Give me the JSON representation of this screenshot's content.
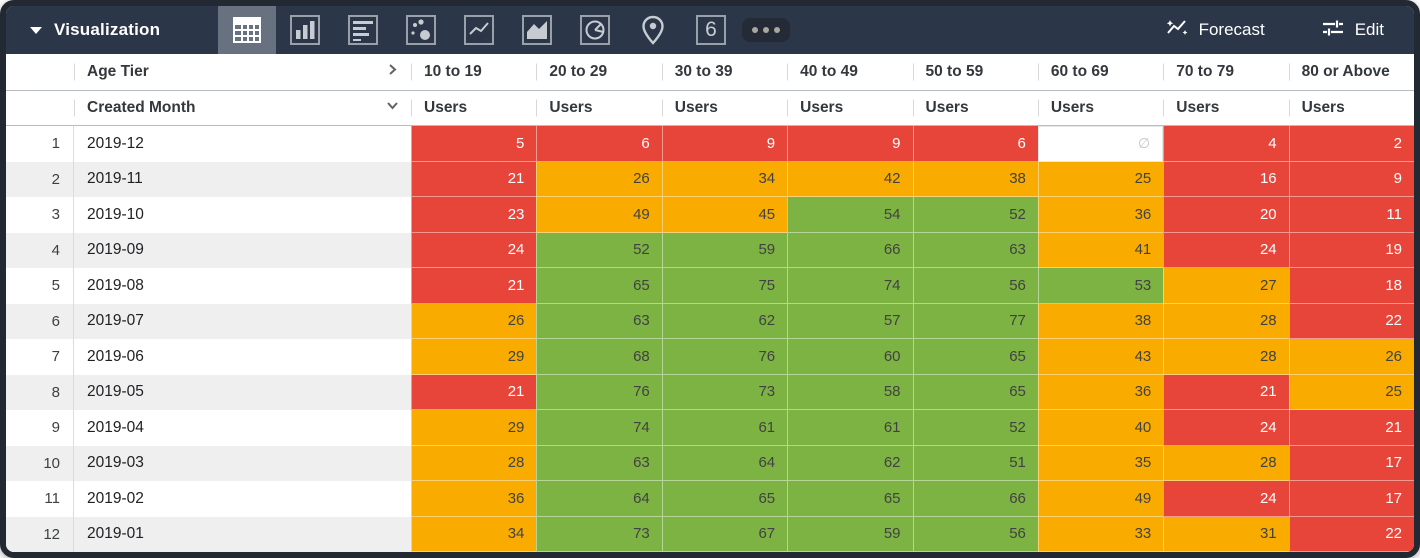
{
  "topbar": {
    "title": "Visualization",
    "selected_vis": "table",
    "vis_types": [
      "table",
      "bar",
      "row-bars",
      "scatter",
      "line",
      "area",
      "pie",
      "map",
      "single-value",
      "more"
    ],
    "single_value_glyph": "6",
    "forecast_label": "Forecast",
    "edit_label": "Edit"
  },
  "table": {
    "dimension_header": "Age Tier",
    "row_header": "Created Month",
    "columns": [
      {
        "tier": "10 to 19",
        "measure": "Users"
      },
      {
        "tier": "20 to 29",
        "measure": "Users"
      },
      {
        "tier": "30 to 39",
        "measure": "Users"
      },
      {
        "tier": "40 to 49",
        "measure": "Users"
      },
      {
        "tier": "50 to 59",
        "measure": "Users"
      },
      {
        "tier": "60 to 69",
        "measure": "Users"
      },
      {
        "tier": "70 to 79",
        "measure": "Users"
      },
      {
        "tier": "80 or Above",
        "measure": "Users"
      }
    ],
    "rows": [
      {
        "n": "1",
        "month": "2019-12",
        "cells": [
          {
            "v": "5",
            "c": "red"
          },
          {
            "v": "6",
            "c": "red"
          },
          {
            "v": "9",
            "c": "red"
          },
          {
            "v": "9",
            "c": "red"
          },
          {
            "v": "6",
            "c": "red"
          },
          {
            "v": "∅",
            "c": "empty"
          },
          {
            "v": "4",
            "c": "red"
          },
          {
            "v": "2",
            "c": "red"
          }
        ]
      },
      {
        "n": "2",
        "month": "2019-11",
        "cells": [
          {
            "v": "21",
            "c": "red"
          },
          {
            "v": "26",
            "c": "orange"
          },
          {
            "v": "34",
            "c": "orange"
          },
          {
            "v": "42",
            "c": "orange"
          },
          {
            "v": "38",
            "c": "orange"
          },
          {
            "v": "25",
            "c": "orange"
          },
          {
            "v": "16",
            "c": "red"
          },
          {
            "v": "9",
            "c": "red"
          }
        ]
      },
      {
        "n": "3",
        "month": "2019-10",
        "cells": [
          {
            "v": "23",
            "c": "red"
          },
          {
            "v": "49",
            "c": "orange"
          },
          {
            "v": "45",
            "c": "orange"
          },
          {
            "v": "54",
            "c": "green"
          },
          {
            "v": "52",
            "c": "green"
          },
          {
            "v": "36",
            "c": "orange"
          },
          {
            "v": "20",
            "c": "red"
          },
          {
            "v": "11",
            "c": "red"
          }
        ]
      },
      {
        "n": "4",
        "month": "2019-09",
        "cells": [
          {
            "v": "24",
            "c": "red"
          },
          {
            "v": "52",
            "c": "green"
          },
          {
            "v": "59",
            "c": "green"
          },
          {
            "v": "66",
            "c": "green"
          },
          {
            "v": "63",
            "c": "green"
          },
          {
            "v": "41",
            "c": "orange"
          },
          {
            "v": "24",
            "c": "red"
          },
          {
            "v": "19",
            "c": "red"
          }
        ]
      },
      {
        "n": "5",
        "month": "2019-08",
        "cells": [
          {
            "v": "21",
            "c": "red"
          },
          {
            "v": "65",
            "c": "green"
          },
          {
            "v": "75",
            "c": "green"
          },
          {
            "v": "74",
            "c": "green"
          },
          {
            "v": "56",
            "c": "green"
          },
          {
            "v": "53",
            "c": "green"
          },
          {
            "v": "27",
            "c": "orange"
          },
          {
            "v": "18",
            "c": "red"
          }
        ]
      },
      {
        "n": "6",
        "month": "2019-07",
        "cells": [
          {
            "v": "26",
            "c": "orange"
          },
          {
            "v": "63",
            "c": "green"
          },
          {
            "v": "62",
            "c": "green"
          },
          {
            "v": "57",
            "c": "green"
          },
          {
            "v": "77",
            "c": "green"
          },
          {
            "v": "38",
            "c": "orange"
          },
          {
            "v": "28",
            "c": "orange"
          },
          {
            "v": "22",
            "c": "red"
          }
        ]
      },
      {
        "n": "7",
        "month": "2019-06",
        "cells": [
          {
            "v": "29",
            "c": "orange"
          },
          {
            "v": "68",
            "c": "green"
          },
          {
            "v": "76",
            "c": "green"
          },
          {
            "v": "60",
            "c": "green"
          },
          {
            "v": "65",
            "c": "green"
          },
          {
            "v": "43",
            "c": "orange"
          },
          {
            "v": "28",
            "c": "orange"
          },
          {
            "v": "26",
            "c": "orange"
          }
        ]
      },
      {
        "n": "8",
        "month": "2019-05",
        "cells": [
          {
            "v": "21",
            "c": "red"
          },
          {
            "v": "76",
            "c": "green"
          },
          {
            "v": "73",
            "c": "green"
          },
          {
            "v": "58",
            "c": "green"
          },
          {
            "v": "65",
            "c": "green"
          },
          {
            "v": "36",
            "c": "orange"
          },
          {
            "v": "21",
            "c": "red"
          },
          {
            "v": "25",
            "c": "orange"
          }
        ]
      },
      {
        "n": "9",
        "month": "2019-04",
        "cells": [
          {
            "v": "29",
            "c": "orange"
          },
          {
            "v": "74",
            "c": "green"
          },
          {
            "v": "61",
            "c": "green"
          },
          {
            "v": "61",
            "c": "green"
          },
          {
            "v": "52",
            "c": "green"
          },
          {
            "v": "40",
            "c": "orange"
          },
          {
            "v": "24",
            "c": "red"
          },
          {
            "v": "21",
            "c": "red"
          }
        ]
      },
      {
        "n": "10",
        "month": "2019-03",
        "cells": [
          {
            "v": "28",
            "c": "orange"
          },
          {
            "v": "63",
            "c": "green"
          },
          {
            "v": "64",
            "c": "green"
          },
          {
            "v": "62",
            "c": "green"
          },
          {
            "v": "51",
            "c": "green"
          },
          {
            "v": "35",
            "c": "orange"
          },
          {
            "v": "28",
            "c": "orange"
          },
          {
            "v": "17",
            "c": "red"
          }
        ]
      },
      {
        "n": "11",
        "month": "2019-02",
        "cells": [
          {
            "v": "36",
            "c": "orange"
          },
          {
            "v": "64",
            "c": "green"
          },
          {
            "v": "65",
            "c": "green"
          },
          {
            "v": "65",
            "c": "green"
          },
          {
            "v": "66",
            "c": "green"
          },
          {
            "v": "49",
            "c": "orange"
          },
          {
            "v": "24",
            "c": "red"
          },
          {
            "v": "17",
            "c": "red"
          }
        ]
      },
      {
        "n": "12",
        "month": "2019-01",
        "cells": [
          {
            "v": "34",
            "c": "orange"
          },
          {
            "v": "73",
            "c": "green"
          },
          {
            "v": "67",
            "c": "green"
          },
          {
            "v": "59",
            "c": "green"
          },
          {
            "v": "56",
            "c": "green"
          },
          {
            "v": "33",
            "c": "orange"
          },
          {
            "v": "31",
            "c": "orange"
          },
          {
            "v": "22",
            "c": "red"
          }
        ]
      }
    ]
  },
  "colors": {
    "red": "#E8453A",
    "orange": "#F9AB00",
    "green": "#7CB342",
    "empty": "#FFFFFF",
    "topbar": "#2B3648",
    "text_on_red": "#FFFFFF",
    "text_on_mid": "#424242"
  }
}
